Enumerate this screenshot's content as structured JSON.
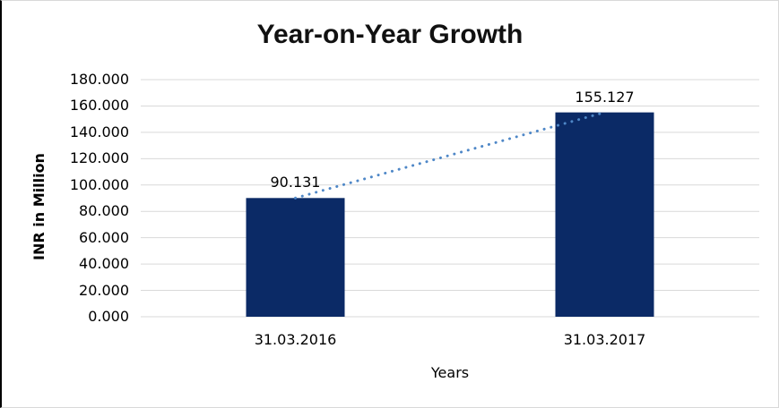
{
  "chart_data": {
    "type": "bar",
    "title": "Year-on-Year Growth",
    "categories": [
      "31.03.2016",
      "31.03.2017"
    ],
    "values": [
      90.131,
      155.127
    ],
    "value_labels": [
      "90.131",
      "155.127"
    ],
    "xlabel": "Years",
    "ylabel": "INR in Million",
    "ylim": [
      0,
      180
    ],
    "ytick_step": 20,
    "ytick_labels": [
      "180.000",
      "160.000",
      "140.000",
      "120.000",
      "100.000",
      "80.000",
      "60.000",
      "40.000",
      "20.000",
      "0.000"
    ],
    "grid": true,
    "legend": "none",
    "trendline": {
      "style": "dotted",
      "from_value": 90.131,
      "to_value": 155.127
    },
    "colors": {
      "bar": "#0B2A66",
      "trendline": "#4E87C7",
      "gridline": "#D9D9D9",
      "text": "#000000",
      "title": "#111111"
    }
  }
}
